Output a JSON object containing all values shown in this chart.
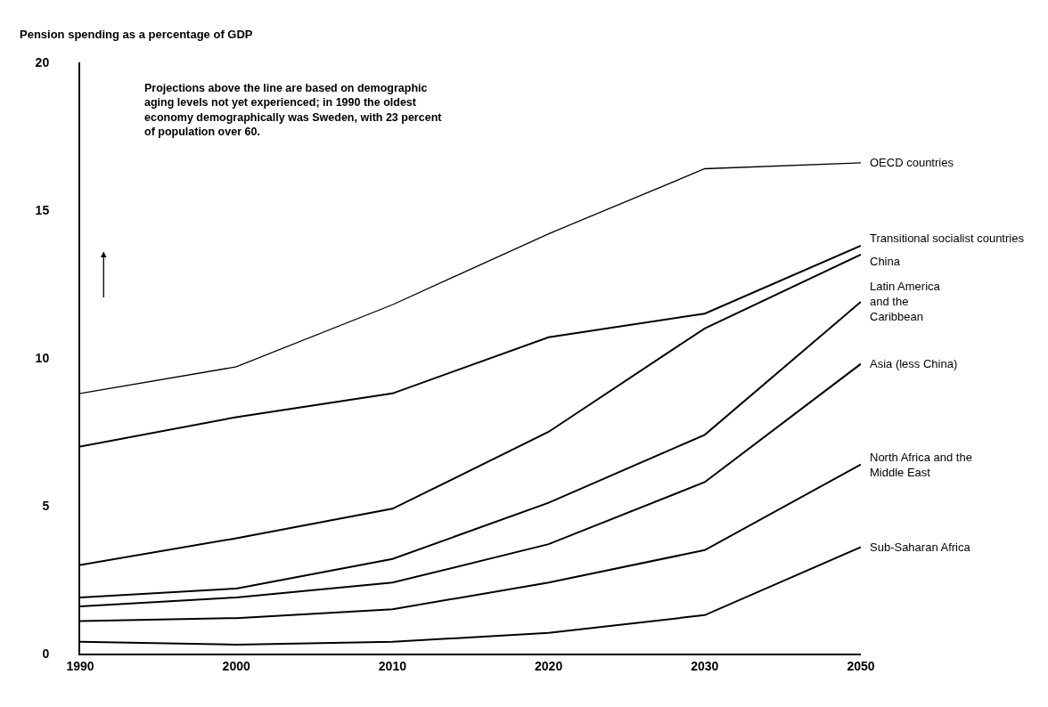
{
  "chart_data": {
    "type": "line",
    "ylabel": "Pension spending as a percentage of GDP",
    "categories": [
      "1990",
      "2000",
      "2010",
      "2020",
      "2030",
      "2050"
    ],
    "ylim": [
      0,
      20
    ],
    "yticks": [
      0,
      5,
      10,
      15,
      20
    ],
    "legend": false,
    "marker": "none",
    "line_style": "solid",
    "annotations": [
      "Projections above the line are based on demographic aging levels not yet experienced; in 1990 the oldest economy demographically was Sweden, with 23 percent of population over 60."
    ],
    "series": [
      {
        "name": "OECD countries",
        "color": "#000000",
        "values": [
          8.8,
          9.7,
          11.8,
          14.2,
          16.4,
          16.6
        ]
      },
      {
        "name": "Transitional socialist countries",
        "color": "#000000",
        "values": [
          7.0,
          8.0,
          8.8,
          10.7,
          11.5,
          13.8
        ]
      },
      {
        "name": "China",
        "color": "#000000",
        "values": [
          3.0,
          3.9,
          4.9,
          7.5,
          11.0,
          13.5
        ]
      },
      {
        "name": "Latin America\nand the\nCaribbean",
        "color": "#000000",
        "values": [
          1.9,
          2.2,
          3.2,
          5.1,
          7.4,
          11.9
        ]
      },
      {
        "name": "Asia (less China)",
        "color": "#000000",
        "values": [
          1.6,
          1.9,
          2.4,
          3.7,
          5.8,
          9.8
        ]
      },
      {
        "name": "North Africa and the\nMiddle East",
        "color": "#000000",
        "values": [
          1.1,
          1.2,
          1.5,
          2.4,
          3.5,
          6.4
        ]
      },
      {
        "name": "Sub-Saharan Africa",
        "color": "#000000",
        "values": [
          0.4,
          0.3,
          0.4,
          0.7,
          1.3,
          3.6
        ]
      }
    ]
  }
}
